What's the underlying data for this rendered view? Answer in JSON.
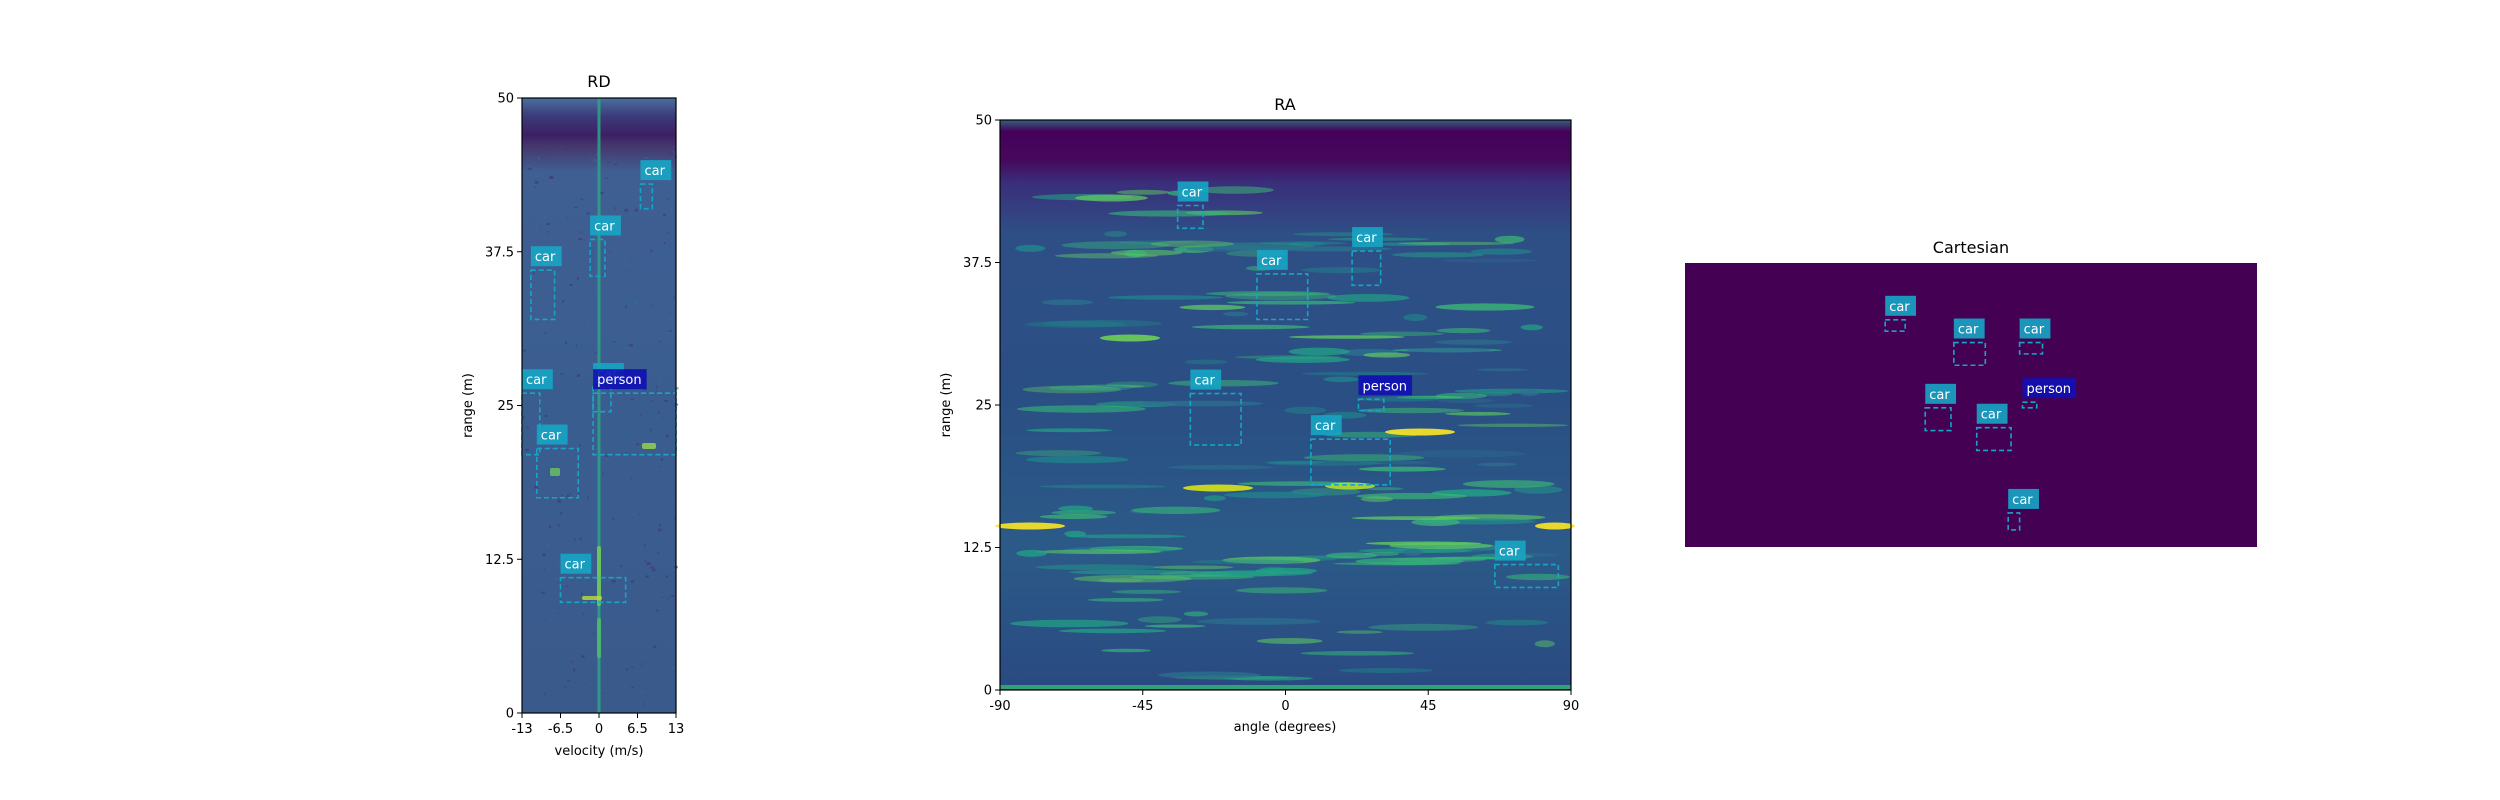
{
  "colors": {
    "car": "#17a5c4",
    "person": "#1010b4",
    "label_text": "#ffffff",
    "rd_background": "#3b5d8f",
    "ra_background": "#2a3f7a",
    "cart_background": "#440154"
  },
  "chart_data": [
    {
      "type": "heatmap",
      "id": "rd",
      "title": "RD",
      "xlabel": "velocity (m/s)",
      "ylabel": "range (m)",
      "xlim": [
        -13,
        13
      ],
      "ylim": [
        0,
        50
      ],
      "xticks": [
        -13,
        -6.5,
        0,
        6.5,
        13
      ],
      "xtick_labels": [
        "-13",
        "-6.5",
        "0",
        "6.5",
        "13"
      ],
      "yticks": [
        0,
        12.5,
        25,
        37.5,
        50
      ],
      "ytick_labels": [
        "0",
        "12.5",
        "25",
        "37.5",
        "50"
      ],
      "colormap": "viridis",
      "boxes": [
        {
          "label": "car",
          "x0": 7,
          "x1": 9,
          "y0": 41,
          "y1": 43
        },
        {
          "label": "car",
          "x0": -1.5,
          "x1": 1,
          "y0": 35.5,
          "y1": 38.5
        },
        {
          "label": "car",
          "x0": -11.5,
          "x1": -7.5,
          "y0": 32,
          "y1": 36
        },
        {
          "label": "car",
          "x0": -1,
          "x1": 2,
          "y0": 24.5,
          "y1": 26.5
        },
        {
          "label": "person",
          "x0": -1,
          "x1": 13,
          "y0": 21,
          "y1": 26
        },
        {
          "label": "car",
          "x0": -13,
          "x1": -10,
          "y0": 21,
          "y1": 26
        },
        {
          "label": "car",
          "x0": -10.5,
          "x1": -3.5,
          "y0": 17.5,
          "y1": 21.5
        },
        {
          "label": "car",
          "x0": -6.5,
          "x1": 4.5,
          "y0": 9,
          "y1": 11
        }
      ]
    },
    {
      "type": "heatmap",
      "id": "ra",
      "title": "RA",
      "xlabel": "angle (degrees)",
      "ylabel": "range (m)",
      "xlim": [
        -90,
        90
      ],
      "ylim": [
        0,
        50
      ],
      "xticks": [
        -90,
        -45,
        0,
        45,
        90
      ],
      "xtick_labels": [
        "-90",
        "-45",
        "0",
        "45",
        "90"
      ],
      "yticks": [
        0,
        12.5,
        25,
        37.5,
        50
      ],
      "ytick_labels": [
        "0",
        "12.5",
        "25",
        "37.5",
        "50"
      ],
      "colormap": "viridis",
      "boxes": [
        {
          "label": "car",
          "x0": -34,
          "x1": -26,
          "y0": 40.5,
          "y1": 42.5
        },
        {
          "label": "car",
          "x0": -9,
          "x1": 7,
          "y0": 32.5,
          "y1": 36.5
        },
        {
          "label": "car",
          "x0": 21,
          "x1": 30,
          "y0": 35.5,
          "y1": 38.5
        },
        {
          "label": "car",
          "x0": -30,
          "x1": -14,
          "y0": 21.5,
          "y1": 26
        },
        {
          "label": "person",
          "x0": 23,
          "x1": 31,
          "y0": 24.5,
          "y1": 25.5
        },
        {
          "label": "car",
          "x0": 8,
          "x1": 33,
          "y0": 18,
          "y1": 22
        },
        {
          "label": "car",
          "x0": 66,
          "x1": 86,
          "y0": 9,
          "y1": 11
        }
      ]
    },
    {
      "type": "heatmap",
      "id": "cartesian",
      "title": "Cartesian",
      "xlim": [
        0,
        1
      ],
      "ylim": [
        0,
        1
      ],
      "axes_visible": false,
      "boxes": [
        {
          "label": "car",
          "x0": 0.35,
          "x1": 0.385,
          "y0": 0.76,
          "y1": 0.8
        },
        {
          "label": "car",
          "x0": 0.47,
          "x1": 0.525,
          "y0": 0.64,
          "y1": 0.72
        },
        {
          "label": "car",
          "x0": 0.585,
          "x1": 0.625,
          "y0": 0.68,
          "y1": 0.72
        },
        {
          "label": "person",
          "x0": 0.59,
          "x1": 0.615,
          "y0": 0.49,
          "y1": 0.51
        },
        {
          "label": "car",
          "x0": 0.42,
          "x1": 0.465,
          "y0": 0.41,
          "y1": 0.49
        },
        {
          "label": "car",
          "x0": 0.51,
          "x1": 0.57,
          "y0": 0.34,
          "y1": 0.42
        },
        {
          "label": "car",
          "x0": 0.565,
          "x1": 0.585,
          "y0": 0.06,
          "y1": 0.12
        }
      ]
    }
  ]
}
